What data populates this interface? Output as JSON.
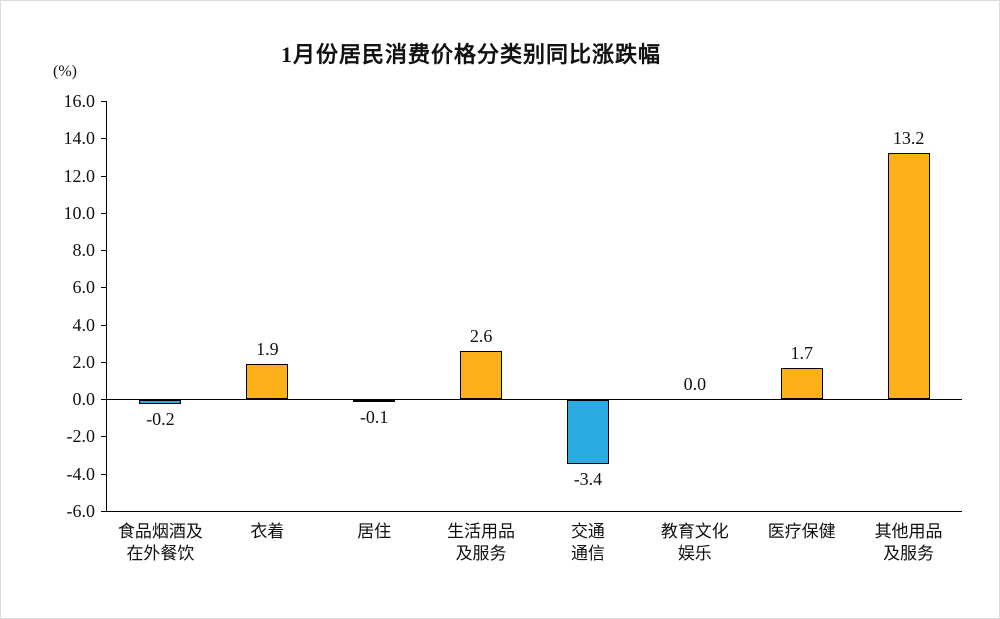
{
  "chart_data": {
    "type": "bar",
    "title": "1月份居民消费价格分类别同比涨跌幅",
    "ylabel": "(%)",
    "xlabel": "",
    "categories": [
      [
        "食品烟酒及",
        "在外餐饮"
      ],
      [
        "衣着"
      ],
      [
        "居住"
      ],
      [
        "生活用品",
        "及服务"
      ],
      [
        "交通",
        "通信"
      ],
      [
        "教育文化",
        "娱乐"
      ],
      [
        "医疗保健"
      ],
      [
        "其他用品",
        "及服务"
      ]
    ],
    "values": [
      -0.2,
      1.9,
      -0.1,
      2.6,
      -3.4,
      0.0,
      1.7,
      13.2
    ],
    "value_labels": [
      "-0.2",
      "1.9",
      "-0.1",
      "2.6",
      "-3.4",
      "0.0",
      "1.7",
      "13.2"
    ],
    "ylim": [
      -6,
      16
    ],
    "ytick_step": 2,
    "ytick_labels": [
      "16.0",
      "14.0",
      "12.0",
      "10.0",
      "8.0",
      "6.0",
      "4.0",
      "2.0",
      "0.0",
      "-2.0",
      "-4.0",
      "-6.0"
    ],
    "grid": false,
    "legend_position": "none",
    "colors": {
      "positive_bar": "#FBB117",
      "negative_bar": "#29ABE2",
      "bar_border": "#000000",
      "axis": "#000000",
      "text": "#111111"
    }
  }
}
